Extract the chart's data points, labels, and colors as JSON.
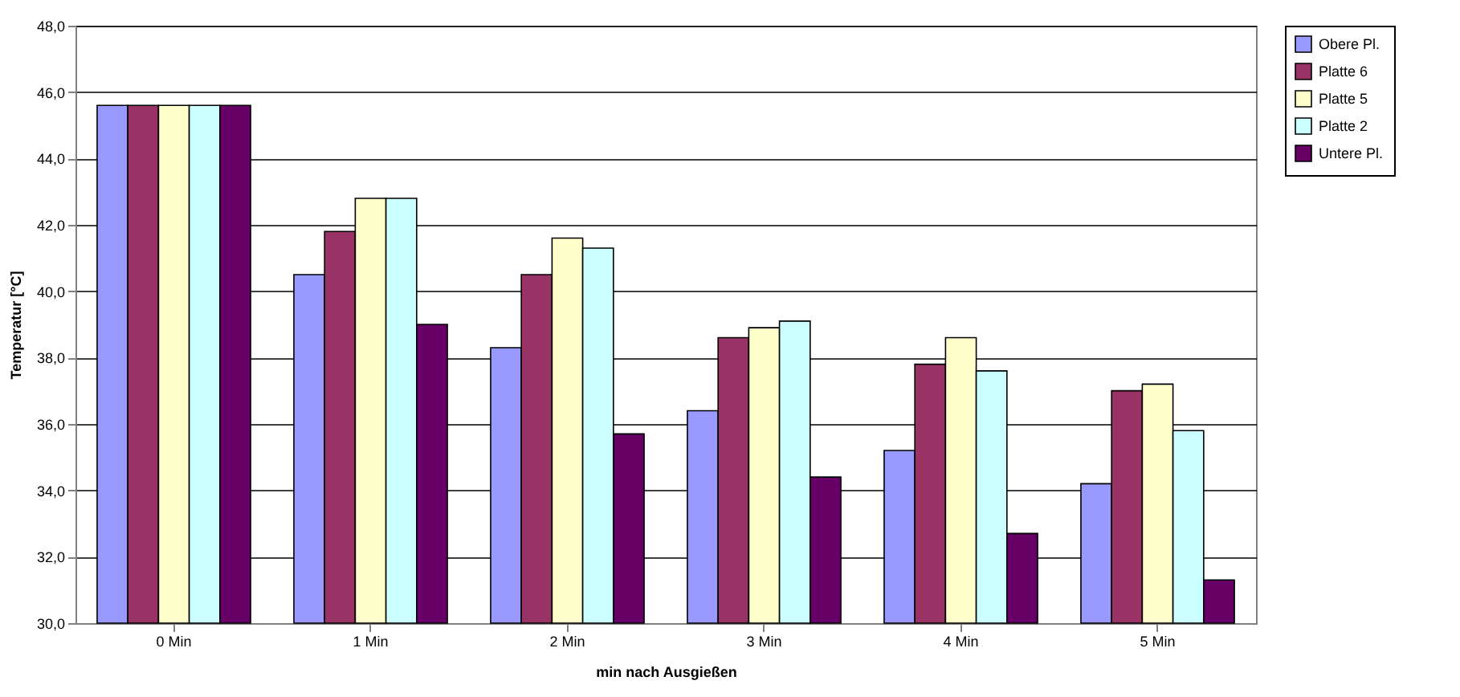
{
  "chart_data": {
    "type": "bar",
    "xlabel": "min nach Ausgießen",
    "ylabel": "Temperatur [°C]",
    "categories": [
      "0 Min",
      "1 Min",
      "2 Min",
      "3 Min",
      "4 Min",
      "5 Min"
    ],
    "series": [
      {
        "name": "Obere Pl.",
        "color": "#9999ff",
        "values": [
          45.6,
          40.5,
          38.3,
          36.4,
          35.2,
          34.2
        ]
      },
      {
        "name": "Platte 6",
        "color": "#993366",
        "values": [
          45.6,
          41.8,
          40.5,
          38.6,
          37.8,
          37.0
        ]
      },
      {
        "name": "Platte 5",
        "color": "#ffffcc",
        "values": [
          45.6,
          42.8,
          41.6,
          38.9,
          38.6,
          37.2
        ]
      },
      {
        "name": "Platte 2",
        "color": "#ccffff",
        "values": [
          45.6,
          42.8,
          41.3,
          39.1,
          37.6,
          35.8
        ]
      },
      {
        "name": "Untere Pl.",
        "color": "#660066",
        "values": [
          45.6,
          39.0,
          35.7,
          34.4,
          32.7,
          31.3
        ]
      }
    ],
    "ylim": [
      30,
      48
    ],
    "yticks": [
      {
        "value": 30,
        "label": "30,0"
      },
      {
        "value": 32,
        "label": "32,0"
      },
      {
        "value": 34,
        "label": "34,0"
      },
      {
        "value": 36,
        "label": "36,0"
      },
      {
        "value": 38,
        "label": "38,0"
      },
      {
        "value": 40,
        "label": "40,0"
      },
      {
        "value": 42,
        "label": "42,0"
      },
      {
        "value": 44,
        "label": "44,0"
      },
      {
        "value": 46,
        "label": "46,0"
      },
      {
        "value": 48,
        "label": "48,0"
      }
    ],
    "grid": "y",
    "legend": "right"
  }
}
